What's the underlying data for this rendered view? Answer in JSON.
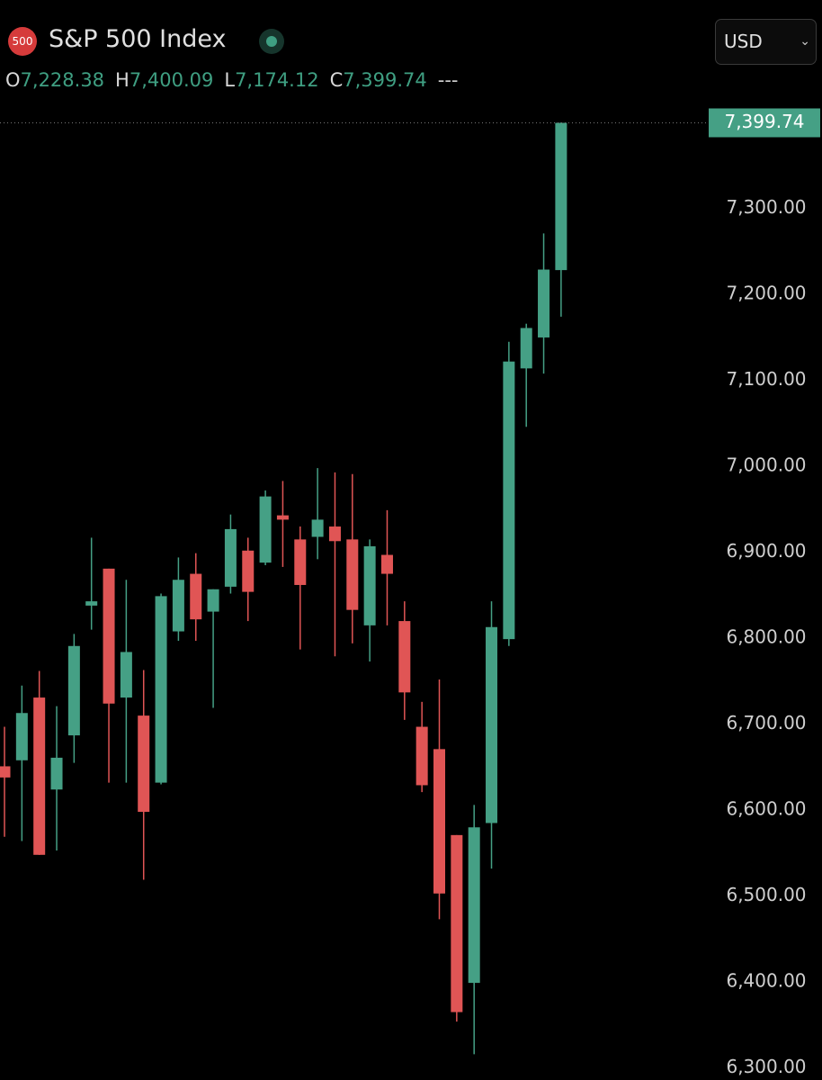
{
  "header": {
    "badge": "500",
    "title": "S&P 500 Index",
    "ohlc": [
      {
        "key": "O",
        "value": "7,228.38"
      },
      {
        "key": "H",
        "value": "7,400.09"
      },
      {
        "key": "L",
        "value": "7,174.12"
      },
      {
        "key": "C",
        "value": "7,399.74"
      }
    ],
    "trailing": "---",
    "currency": "USD"
  },
  "chart_data": {
    "type": "candlestick",
    "up_color": "#45a085",
    "down_color": "#e05555",
    "open": [
      6651,
      6658,
      6731,
      6624,
      6687,
      6838,
      6881,
      6731,
      6710,
      6632,
      6808,
      6875,
      6831,
      6860,
      6902,
      6888,
      6943,
      6915,
      6918,
      6930,
      6915,
      6815,
      6897,
      6820,
      6697,
      6671,
      6571,
      6399,
      6585,
      6799,
      7114,
      7150,
      7228.38
    ],
    "high": [
      6697,
      6745,
      6762,
      6721,
      6805,
      6917,
      6881,
      6868,
      6763,
      6852,
      6894,
      6899,
      6857,
      6944,
      6917,
      6972,
      6983,
      6930,
      6998,
      6993,
      6991,
      6915,
      6949,
      6843,
      6726,
      6752,
      6571,
      6606,
      6843,
      7145,
      7166,
      7271,
      7400.09
    ],
    "low": [
      6569,
      6564,
      6548,
      6553,
      6655,
      6810,
      6632,
      6632,
      6519,
      6630,
      6797,
      6797,
      6719,
      6852,
      6820,
      6885,
      6883,
      6787,
      6892,
      6779,
      6794,
      6773,
      6815,
      6705,
      6621,
      6473,
      6354,
      6316,
      6532,
      6791,
      7046,
      7108,
      7174.12
    ],
    "close": [
      6638,
      6713,
      6548,
      6661,
      6791,
      6843,
      6724,
      6784,
      6598,
      6849,
      6868,
      6822,
      6857,
      6927,
      6854,
      6965,
      6938,
      6862,
      6938,
      6913,
      6833,
      6907,
      6875,
      6737,
      6629,
      6503,
      6365,
      6580,
      6813,
      7122,
      7161,
      7229,
      7399.74
    ],
    "ylim": [
      6286,
      7417
    ],
    "yticks": [
      {
        "value": 6300,
        "label": "6,300.00"
      },
      {
        "value": 6400,
        "label": "6,400.00"
      },
      {
        "value": 6500,
        "label": "6,500.00"
      },
      {
        "value": 6600,
        "label": "6,600.00"
      },
      {
        "value": 6700,
        "label": "6,700.00"
      },
      {
        "value": 6800,
        "label": "6,800.00"
      },
      {
        "value": 6900,
        "label": "6,900.00"
      },
      {
        "value": 7000,
        "label": "7,000.00"
      },
      {
        "value": 7100,
        "label": "7,100.00"
      },
      {
        "value": 7200,
        "label": "7,200.00"
      },
      {
        "value": 7300,
        "label": "7,300.00"
      }
    ],
    "last_price": {
      "value": 7399.74,
      "label": "7,399.74"
    },
    "last_price_color": "#45a085",
    "grid": false
  }
}
